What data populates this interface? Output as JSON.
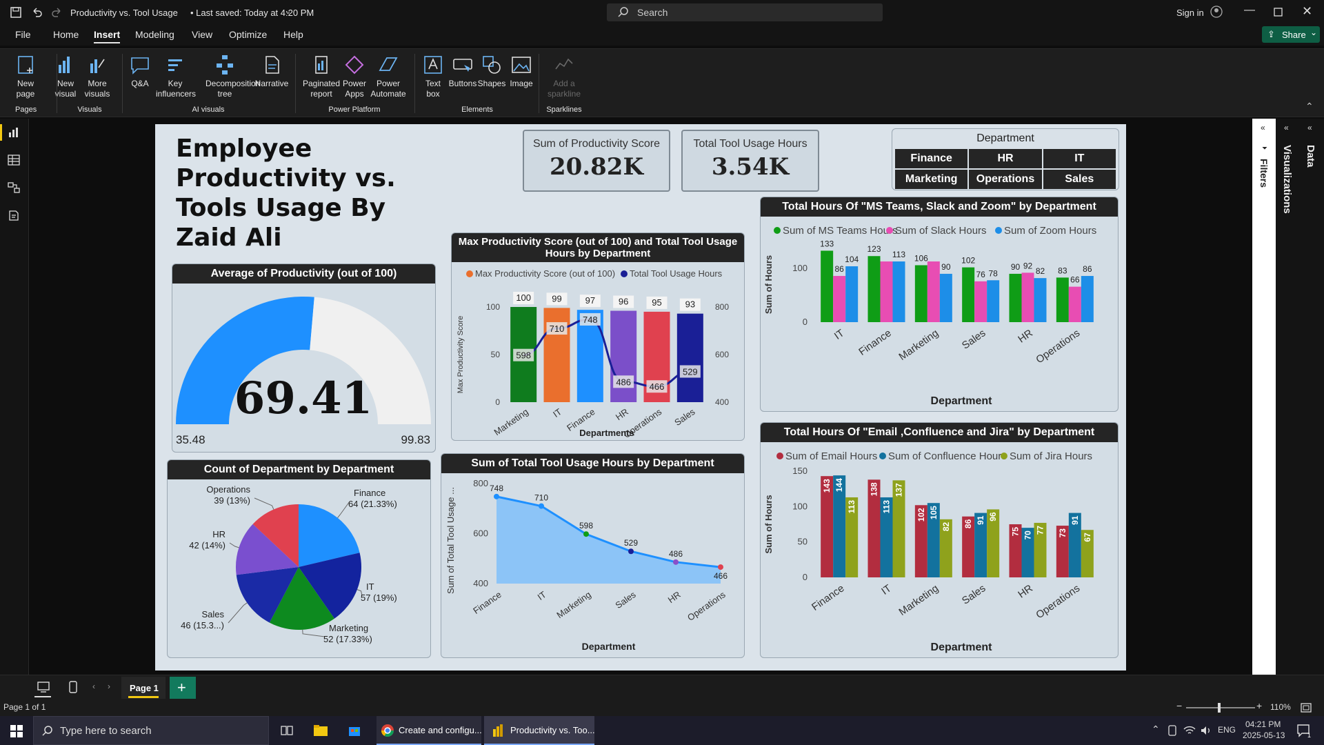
{
  "window": {
    "title": "Productivity vs. Tool Usage",
    "saved": "• Last saved: Today at 4:20 PM",
    "search_placeholder": "Search",
    "sign_in": "Sign in",
    "share": "Share"
  },
  "menu": {
    "items": [
      "File",
      "Home",
      "Insert",
      "Modeling",
      "View",
      "Optimize",
      "Help"
    ],
    "active": "Insert"
  },
  "ribbon": {
    "buttons": [
      {
        "label": "New\npage",
        "group": "Pages"
      },
      {
        "label": "New\nvisual",
        "group": "Visuals"
      },
      {
        "label": "More\nvisuals",
        "group": "Visuals"
      },
      {
        "label": "Q&A",
        "group": "AI visuals"
      },
      {
        "label": "Key\ninfluencers",
        "group": "AI visuals"
      },
      {
        "label": "Decomposition\ntree",
        "group": "AI visuals"
      },
      {
        "label": "Narrative",
        "group": "AI visuals"
      },
      {
        "label": "Paginated\nreport",
        "group": "Power Platform"
      },
      {
        "label": "Power\nApps",
        "group": "Power Platform"
      },
      {
        "label": "Power\nAutomate",
        "group": "Power Platform"
      },
      {
        "label": "Text\nbox",
        "group": "Elements"
      },
      {
        "label": "Buttons",
        "group": "Elements"
      },
      {
        "label": "Shapes",
        "group": "Elements"
      },
      {
        "label": "Image",
        "group": "Elements"
      },
      {
        "label": "Add a\nsparkline",
        "group": "Sparklines"
      }
    ],
    "groups": [
      "Pages",
      "Visuals",
      "AI visuals",
      "Power Platform",
      "Elements",
      "Sparklines"
    ]
  },
  "report": {
    "title": "Employee Productivity vs. Tools Usage By Zaid Ali",
    "kpis": [
      {
        "label": "Sum of Productivity Score",
        "value": "20.82K"
      },
      {
        "label": "Total Tool Usage Hours",
        "value": "3.54K"
      }
    ],
    "slicer": {
      "title": "Department",
      "items": [
        "Finance",
        "HR",
        "IT",
        "Marketing",
        "Operations",
        "Sales"
      ]
    }
  },
  "side_panels": {
    "filters": "Filters",
    "visualizations": "Visualizations",
    "data": "Data"
  },
  "pages": {
    "current": "Page 1",
    "status": "Page 1 of 1",
    "zoom": "110%"
  },
  "taskbar": {
    "search": "Type here to search",
    "apps": [
      "Create and configu...",
      "Productivity vs. Too..."
    ],
    "lang": "ENG",
    "time": "04:21 PM",
    "date": "2025-05-13"
  },
  "colors": {
    "accent": "#0e72e8",
    "gauge": "#1e90ff",
    "dark_header": "#252525"
  },
  "chart_data": [
    {
      "type": "gauge",
      "title": "Average of Productivity (out of 100)",
      "value": 69.41,
      "value_label": "69.41",
      "min": 35.48,
      "max": 99.83,
      "min_label": "35.48",
      "max_label": "99.83"
    },
    {
      "type": "bar+line",
      "title": "Max Productivity Score (out of 100) and Total Tool Usage Hours by Department",
      "categories": [
        "Marketing",
        "IT",
        "Finance",
        "HR",
        "Operations",
        "Sales"
      ],
      "series": [
        {
          "name": "Max Productivity Score (out of 100)",
          "values": [
            100,
            99,
            97,
            96,
            95,
            93
          ]
        },
        {
          "name": "Total Tool Usage Hours",
          "values": [
            598,
            710,
            748,
            486,
            466,
            529
          ]
        }
      ],
      "bar_colors": [
        "#0f7c1e",
        "#ea6f2d",
        "#1e90ff",
        "#7b4fc9",
        "#e0414f",
        "#1a1f96"
      ],
      "xlabel": "Departments",
      "ylabel": "Max Productivity Score",
      "ylim": [
        0,
        100
      ],
      "y2lim": [
        400,
        800
      ],
      "yticks": [
        "0",
        "50",
        "100"
      ],
      "y2ticks": [
        "400",
        "600",
        "800"
      ]
    },
    {
      "type": "bar",
      "title": "Total Hours Of \"MS Teams, Slack and Zoom\" by Department",
      "categories": [
        "IT",
        "Finance",
        "Marketing",
        "Sales",
        "HR",
        "Operations"
      ],
      "series": [
        {
          "name": "Sum of MS Teams Hours",
          "values": [
            133,
            123,
            106,
            102,
            90,
            83
          ],
          "color": "#0f9d16"
        },
        {
          "name": "Sum of Slack Hours",
          "values": [
            86,
            113,
            113,
            76,
            92,
            66
          ],
          "color": "#e84db3"
        },
        {
          "name": "Sum of Zoom Hours",
          "values": [
            104,
            113,
            90,
            78,
            82,
            86
          ],
          "color": "#1d8ee8"
        }
      ],
      "labels": [
        [
          "133",
          "86",
          "104"
        ],
        [
          "123",
          "",
          "113"
        ],
        [
          "106",
          "",
          "90"
        ],
        [
          "102",
          "76",
          "78"
        ],
        [
          "90",
          "92",
          "82"
        ],
        [
          "83",
          "66",
          "86"
        ]
      ],
      "xlabel": "Department",
      "ylabel": "Sum of Hours",
      "ylim": [
        0,
        140
      ],
      "yticks": [
        "0",
        "100"
      ]
    },
    {
      "type": "pie",
      "title": "Count of Department by Department",
      "slices": [
        {
          "name": "Finance",
          "value": 64,
          "label": "Finance",
          "detail": "64 (21.33%)",
          "color": "#1e90ff"
        },
        {
          "name": "IT",
          "value": 57,
          "label": "IT",
          "detail": "57 (19%)",
          "color": "#13239e"
        },
        {
          "name": "Marketing",
          "value": 52,
          "label": "Marketing",
          "detail": "52 (17.33%)",
          "color": "#0d8a1f"
        },
        {
          "name": "Sales",
          "value": 46,
          "label": "Sales",
          "detail": "46 (15.3...)",
          "color": "#1a2aa6"
        },
        {
          "name": "HR",
          "value": 42,
          "label": "HR",
          "detail": "42 (14%)",
          "color": "#7a4fcf"
        },
        {
          "name": "Operations",
          "value": 39,
          "label": "Operations",
          "detail": "39 (13%)",
          "color": "#e0414f"
        }
      ]
    },
    {
      "type": "area",
      "title": "Sum of Total Tool Usage Hours by Department",
      "categories": [
        "Finance",
        "IT",
        "Marketing",
        "Sales",
        "HR",
        "Operations"
      ],
      "values": [
        748,
        710,
        598,
        529,
        486,
        466
      ],
      "labels": [
        "748",
        "710",
        "598",
        "529",
        "486",
        "466"
      ],
      "xlabel": "Department",
      "ylabel": "Sum of Total Tool Usage ...",
      "ylim": [
        400,
        800
      ],
      "yticks": [
        "400",
        "600",
        "800"
      ]
    },
    {
      "type": "bar",
      "title": "Total Hours Of \"Email ,Confluence and Jira\" by Department",
      "categories": [
        "Finance",
        "IT",
        "Marketing",
        "Sales",
        "HR",
        "Operations"
      ],
      "series": [
        {
          "name": "Sum of Email Hours",
          "values": [
            143,
            138,
            102,
            86,
            75,
            73
          ],
          "color": "#b22d3f"
        },
        {
          "name": "Sum of Confluence Hours",
          "values": [
            144,
            113,
            105,
            91,
            70,
            91
          ],
          "color": "#13729e"
        },
        {
          "name": "Sum of Jira Hours",
          "values": [
            113,
            137,
            82,
            96,
            77,
            67
          ],
          "color": "#8fa21c"
        }
      ],
      "xlabel": "Department",
      "ylabel": "Sum of Hours",
      "ylim": [
        0,
        150
      ],
      "yticks": [
        "0",
        "50",
        "100",
        "150"
      ]
    }
  ]
}
